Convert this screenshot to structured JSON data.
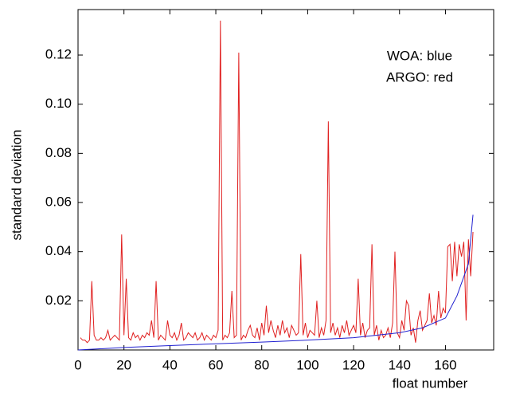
{
  "chart_data": {
    "type": "line",
    "xlabel": "float number",
    "ylabel": "standard deviation",
    "annotations": [
      "WOA: blue",
      "ARGO: red"
    ],
    "xlim": [
      0,
      181
    ],
    "ylim": [
      0,
      0.1385
    ],
    "xticks": [
      0,
      20,
      40,
      60,
      80,
      100,
      120,
      140,
      160
    ],
    "yticks": [
      0.02,
      0.04,
      0.06,
      0.08,
      {
        "value": 0.1,
        "label": "0.10"
      },
      0.12
    ],
    "series": [
      {
        "color": "#e02020",
        "x": [
          1,
          2,
          3,
          4,
          5,
          6,
          7,
          8,
          9,
          10,
          11,
          12,
          13,
          14,
          15,
          16,
          17,
          18,
          19,
          20,
          21,
          22,
          23,
          24,
          25,
          26,
          27,
          28,
          29,
          30,
          31,
          32,
          33,
          34,
          35,
          36,
          37,
          38,
          39,
          40,
          41,
          42,
          43,
          44,
          45,
          46,
          47,
          48,
          49,
          50,
          51,
          52,
          53,
          54,
          55,
          56,
          57,
          58,
          59,
          60,
          61,
          62,
          63,
          64,
          65,
          66,
          67,
          68,
          69,
          70,
          71,
          72,
          73,
          74,
          75,
          76,
          77,
          78,
          79,
          80,
          81,
          82,
          83,
          84,
          85,
          86,
          87,
          88,
          89,
          90,
          91,
          92,
          93,
          94,
          95,
          96,
          97,
          98,
          99,
          100,
          101,
          102,
          103,
          104,
          105,
          106,
          107,
          108,
          109,
          110,
          111,
          112,
          113,
          114,
          115,
          116,
          117,
          118,
          119,
          120,
          121,
          122,
          123,
          124,
          125,
          126,
          127,
          128,
          129,
          130,
          131,
          132,
          133,
          134,
          135,
          136,
          137,
          138,
          139,
          140,
          141,
          142,
          143,
          144,
          145,
          146,
          147,
          148,
          149,
          150,
          151,
          152,
          153,
          154,
          155,
          156,
          157,
          158,
          159,
          160,
          161,
          162,
          163,
          164,
          165,
          166,
          167,
          168,
          169,
          170,
          171,
          172
        ],
        "values": [
          0.005,
          0.004,
          0.004,
          0.003,
          0.004,
          0.028,
          0.006,
          0.004,
          0.004,
          0.005,
          0.004,
          0.005,
          0.008,
          0.004,
          0.005,
          0.006,
          0.005,
          0.004,
          0.047,
          0.006,
          0.029,
          0.005,
          0.004,
          0.007,
          0.005,
          0.006,
          0.004,
          0.006,
          0.005,
          0.007,
          0.006,
          0.012,
          0.005,
          0.028,
          0.004,
          0.006,
          0.005,
          0.004,
          0.012,
          0.006,
          0.005,
          0.007,
          0.004,
          0.006,
          0.011,
          0.004,
          0.005,
          0.007,
          0.006,
          0.005,
          0.007,
          0.004,
          0.005,
          0.007,
          0.004,
          0.006,
          0.005,
          0.004,
          0.006,
          0.005,
          0.008,
          0.134,
          0.004,
          0.006,
          0.005,
          0.007,
          0.024,
          0.005,
          0.006,
          0.121,
          0.004,
          0.006,
          0.005,
          0.008,
          0.01,
          0.006,
          0.005,
          0.009,
          0.004,
          0.011,
          0.006,
          0.018,
          0.007,
          0.012,
          0.008,
          0.005,
          0.01,
          0.006,
          0.012,
          0.007,
          0.009,
          0.005,
          0.01,
          0.008,
          0.006,
          0.007,
          0.039,
          0.006,
          0.011,
          0.005,
          0.008,
          0.007,
          0.006,
          0.02,
          0.005,
          0.009,
          0.006,
          0.012,
          0.093,
          0.007,
          0.011,
          0.006,
          0.009,
          0.005,
          0.01,
          0.007,
          0.012,
          0.006,
          0.008,
          0.01,
          0.007,
          0.029,
          0.006,
          0.011,
          0.005,
          0.008,
          0.009,
          0.043,
          0.006,
          0.01,
          0.004,
          0.008,
          0.005,
          0.006,
          0.009,
          0.005,
          0.011,
          0.04,
          0.007,
          0.005,
          0.012,
          0.008,
          0.02,
          0.018,
          0.006,
          0.009,
          0.003,
          0.012,
          0.016,
          0.008,
          0.01,
          0.012,
          0.023,
          0.011,
          0.014,
          0.01,
          0.024,
          0.013,
          0.017,
          0.015,
          0.042,
          0.043,
          0.028,
          0.044,
          0.03,
          0.043,
          0.038,
          0.044,
          0.012,
          0.045,
          0.03,
          0.048
        ]
      },
      {
        "color": "#2020d0",
        "x": [
          0,
          20,
          40,
          60,
          80,
          100,
          120,
          140,
          150,
          160,
          165,
          170,
          172
        ],
        "values": [
          0,
          0.001,
          0.0018,
          0.0025,
          0.0032,
          0.004,
          0.005,
          0.007,
          0.009,
          0.013,
          0.022,
          0.035,
          0.055
        ]
      }
    ]
  }
}
